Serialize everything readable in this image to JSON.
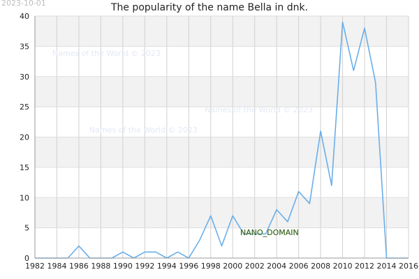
{
  "header": {
    "date": "2023-10-01"
  },
  "watermarks": [
    "Names of the World © 2023",
    "Names of the World © 2023",
    "Names of the World © 2023"
  ],
  "badge": "NANO_DOMAIN",
  "chart_data": {
    "type": "line",
    "title": "The popularity of the name Bella in dnk.",
    "xlabel": "",
    "ylabel": "",
    "xlim": [
      1982,
      2016
    ],
    "ylim": [
      0,
      40
    ],
    "x_ticks": [
      1982,
      1984,
      1986,
      1988,
      1990,
      1992,
      1994,
      1996,
      1998,
      2000,
      2002,
      2004,
      2006,
      2008,
      2010,
      2012,
      2014,
      2016
    ],
    "y_ticks": [
      0,
      5,
      10,
      15,
      20,
      25,
      30,
      35,
      40
    ],
    "grid": true,
    "line_color": "#6aaeea",
    "band_color": "#f2f2f2",
    "series": [
      {
        "x": [
          1982,
          1983,
          1984,
          1985,
          1986,
          1987,
          1988,
          1989,
          1990,
          1991,
          1992,
          1993,
          1994,
          1995,
          1996,
          1997,
          1998,
          1999,
          2000,
          2001,
          2002,
          2003,
          2004,
          2005,
          2006,
          2007,
          2008,
          2009,
          2010,
          2011,
          2012,
          2013,
          2014,
          2015,
          2016
        ],
        "values": [
          0,
          0,
          0,
          0,
          2,
          0,
          0,
          0,
          1,
          0,
          1,
          1,
          0,
          1,
          0,
          3,
          7,
          2,
          7,
          4,
          4,
          4,
          8,
          6,
          11,
          9,
          21,
          12,
          39,
          31,
          38,
          29,
          0,
          0,
          0
        ]
      }
    ]
  }
}
